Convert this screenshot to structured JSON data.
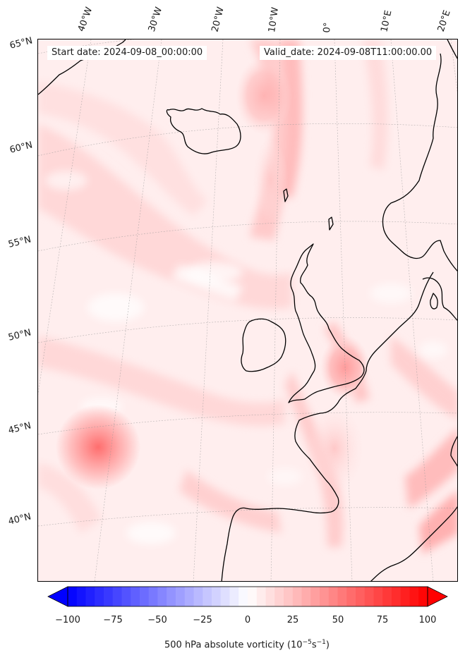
{
  "header": {
    "start_date": "Start date: 2024-09-08_00:00:00",
    "valid_date": "Valid_date: 2024-09-08T11:00:00.00"
  },
  "lon_labels": [
    "40°W",
    "30°W",
    "20°W",
    "10°W",
    "0°",
    "10°E",
    "20°E"
  ],
  "lat_labels": [
    "65°N",
    "60°N",
    "55°N",
    "50°N",
    "45°N",
    "40°N"
  ],
  "colorbar": {
    "ticks": [
      "−100",
      "−75",
      "−50",
      "−25",
      "0",
      "25",
      "50",
      "75",
      "100"
    ],
    "label_prefix": "500 hPa absolute vorticity (10",
    "label_exp1": "−5",
    "label_mid": "s",
    "label_exp2": "−1",
    "label_suffix": ")",
    "min": -100,
    "max": 100,
    "levels": 40,
    "colors": {
      "negative": "#0000ff",
      "zero": "#ffffff",
      "positive": "#ff0000"
    }
  },
  "map": {
    "field_background": "#fff3f3",
    "coastline_color": "#000000"
  }
}
